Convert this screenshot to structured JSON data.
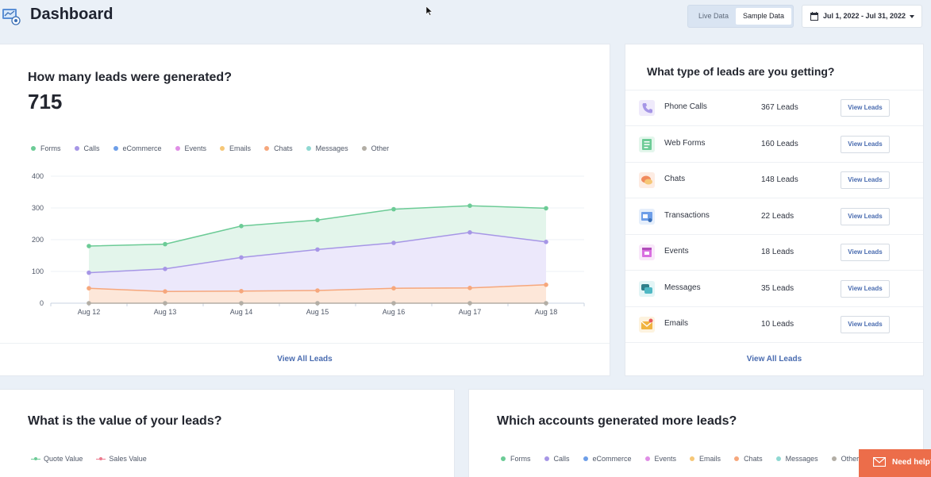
{
  "header": {
    "title": "Dashboard",
    "toggle": {
      "live": "Live Data",
      "sample": "Sample Data"
    },
    "date_range": "Jul 1, 2022 - Jul 31, 2022"
  },
  "leads_generated": {
    "heading": "How many leads were generated?",
    "total": "715",
    "legend": [
      {
        "name": "Forms",
        "color": "#6ccb96"
      },
      {
        "name": "Calls",
        "color": "#a696e6"
      },
      {
        "name": "eCommerce",
        "color": "#6d9ee8"
      },
      {
        "name": "Events",
        "color": "#e08ee6"
      },
      {
        "name": "Emails",
        "color": "#f6c777"
      },
      {
        "name": "Chats",
        "color": "#f6a77c"
      },
      {
        "name": "Messages",
        "color": "#8fd8d2"
      },
      {
        "name": "Other",
        "color": "#b3aea5"
      }
    ],
    "view_all": "View All Leads"
  },
  "chart_data": {
    "type": "area",
    "x": [
      "Aug 12",
      "Aug 13",
      "Aug 14",
      "Aug 15",
      "Aug 16",
      "Aug 17",
      "Aug 18"
    ],
    "ylim": [
      0,
      400
    ],
    "yticks": [
      "0",
      "100",
      "200",
      "300",
      "400"
    ],
    "grid": true,
    "legend_position": "top-left",
    "series": [
      {
        "name": "Forms",
        "values": [
          180,
          186,
          243,
          262,
          296,
          307,
          299
        ]
      },
      {
        "name": "Calls",
        "values": [
          96,
          108,
          144,
          169,
          190,
          223,
          193
        ]
      },
      {
        "name": "Chats",
        "values": [
          47,
          37,
          38,
          40,
          47,
          48,
          58
        ]
      },
      {
        "name": "Other",
        "values": [
          0,
          0,
          0,
          0,
          0,
          0,
          0
        ]
      }
    ]
  },
  "lead_types": {
    "heading": "What type of leads are you getting?",
    "rows": [
      {
        "name": "Phone Calls",
        "count": "367 Leads",
        "button": "View Leads",
        "icon": "phone-icon",
        "color": "#a696e6",
        "bg": "#efeafb"
      },
      {
        "name": "Web Forms",
        "count": "160 Leads",
        "button": "View Leads",
        "icon": "form-icon",
        "color": "#6ccb96",
        "bg": "#e4f6ec"
      },
      {
        "name": "Chats",
        "count": "148 Leads",
        "button": "View Leads",
        "icon": "chat-icon",
        "color": "#f08a5d",
        "bg": "#fdece3"
      },
      {
        "name": "Transactions",
        "count": "22 Leads",
        "button": "View Leads",
        "icon": "cart-icon",
        "color": "#6d9ee8",
        "bg": "#e6effb"
      },
      {
        "name": "Events",
        "count": "18 Leads",
        "button": "View Leads",
        "icon": "calendar-icon",
        "color": "#d96fe0",
        "bg": "#f9e8fa"
      },
      {
        "name": "Messages",
        "count": "35 Leads",
        "button": "View Leads",
        "icon": "message-icon",
        "color": "#4fb8c4",
        "bg": "#e3f5f6"
      },
      {
        "name": "Emails",
        "count": "10 Leads",
        "button": "View Leads",
        "icon": "envelope-icon",
        "color": "#f0b441",
        "bg": "#fdf3df"
      }
    ],
    "view_all": "View All Leads"
  },
  "leads_value": {
    "heading": "What is the value of your leads?",
    "legend": [
      {
        "name": "Quote Value",
        "color": "#6ccb96"
      },
      {
        "name": "Sales Value",
        "color": "#ec7b8e"
      }
    ]
  },
  "accounts": {
    "heading": "Which accounts generated more leads?",
    "legend": [
      {
        "name": "Forms",
        "color": "#6ccb96"
      },
      {
        "name": "Calls",
        "color": "#a696e6"
      },
      {
        "name": "eCommerce",
        "color": "#6d9ee8"
      },
      {
        "name": "Events",
        "color": "#e08ee6"
      },
      {
        "name": "Emails",
        "color": "#f6c777"
      },
      {
        "name": "Chats",
        "color": "#f6a77c"
      },
      {
        "name": "Messages",
        "color": "#8fd8d2"
      },
      {
        "name": "Other",
        "color": "#b3aea5"
      }
    ]
  },
  "help": {
    "label": "Need help?"
  }
}
